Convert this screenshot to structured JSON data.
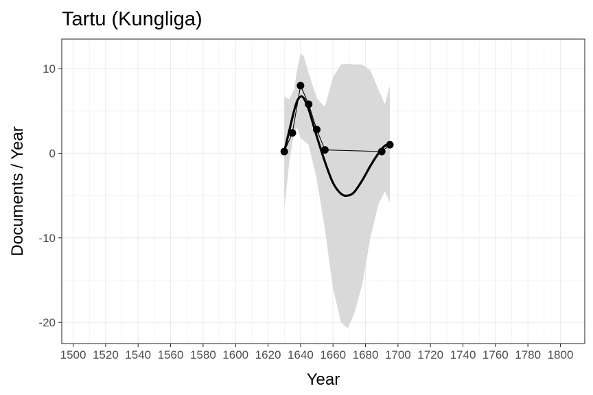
{
  "chart_data": {
    "type": "line",
    "title": "Tartu (Kungliga)",
    "xlabel": "Year",
    "ylabel": "Documents / Year",
    "xlim": [
      1493,
      1815
    ],
    "ylim": [
      -22.5,
      13.5
    ],
    "x_ticks": [
      1500,
      1520,
      1540,
      1560,
      1580,
      1600,
      1620,
      1640,
      1660,
      1680,
      1700,
      1720,
      1740,
      1760,
      1780,
      1800
    ],
    "x_tick_labels": [
      "1500",
      "1520",
      "1540",
      "1560",
      "1580",
      "1600",
      "1620",
      "1640",
      "1660",
      "1680",
      "1700",
      "1720",
      "1740",
      "1760",
      "1780",
      "1800"
    ],
    "y_ticks": [
      -20,
      -10,
      0,
      10
    ],
    "y_tick_labels": [
      "-20",
      "-10",
      "0",
      "10"
    ],
    "grid": true,
    "series": [
      {
        "kind": "observed",
        "x": [
          1630,
          1635,
          1640,
          1645,
          1650,
          1655,
          1690,
          1695
        ],
        "y": [
          0.2,
          2.4,
          8.0,
          5.8,
          2.8,
          0.4,
          0.2,
          1.0
        ]
      },
      {
        "kind": "smooth",
        "x": [
          1630,
          1633,
          1636,
          1638,
          1640,
          1642,
          1645,
          1650,
          1655,
          1660,
          1665,
          1669,
          1673,
          1678,
          1683,
          1688,
          1692,
          1695
        ],
        "y": [
          0.2,
          2.6,
          5.0,
          6.2,
          6.7,
          6.5,
          5.2,
          2.0,
          -1.0,
          -3.5,
          -4.8,
          -5.0,
          -4.6,
          -3.2,
          -1.5,
          0.0,
          0.9,
          1.0
        ],
        "ci_upper": [
          6.7,
          6.4,
          7.5,
          10.0,
          11.8,
          11.5,
          9.5,
          6.5,
          5.5,
          9.0,
          10.5,
          10.6,
          10.5,
          10.5,
          9.8,
          7.5,
          5.8,
          8.0
        ],
        "ci_lower": [
          -6.7,
          -1.2,
          2.5,
          3.0,
          1.8,
          1.5,
          1.0,
          -3.0,
          -9.0,
          -16.0,
          -20.0,
          -20.7,
          -19.0,
          -15.5,
          -10.0,
          -6.0,
          -4.5,
          -5.8
        ]
      }
    ],
    "colors": {
      "ribbon": "#d9d9d9",
      "line": "#000000",
      "grid": "#ebebeb",
      "panel_border": "#333333"
    }
  }
}
